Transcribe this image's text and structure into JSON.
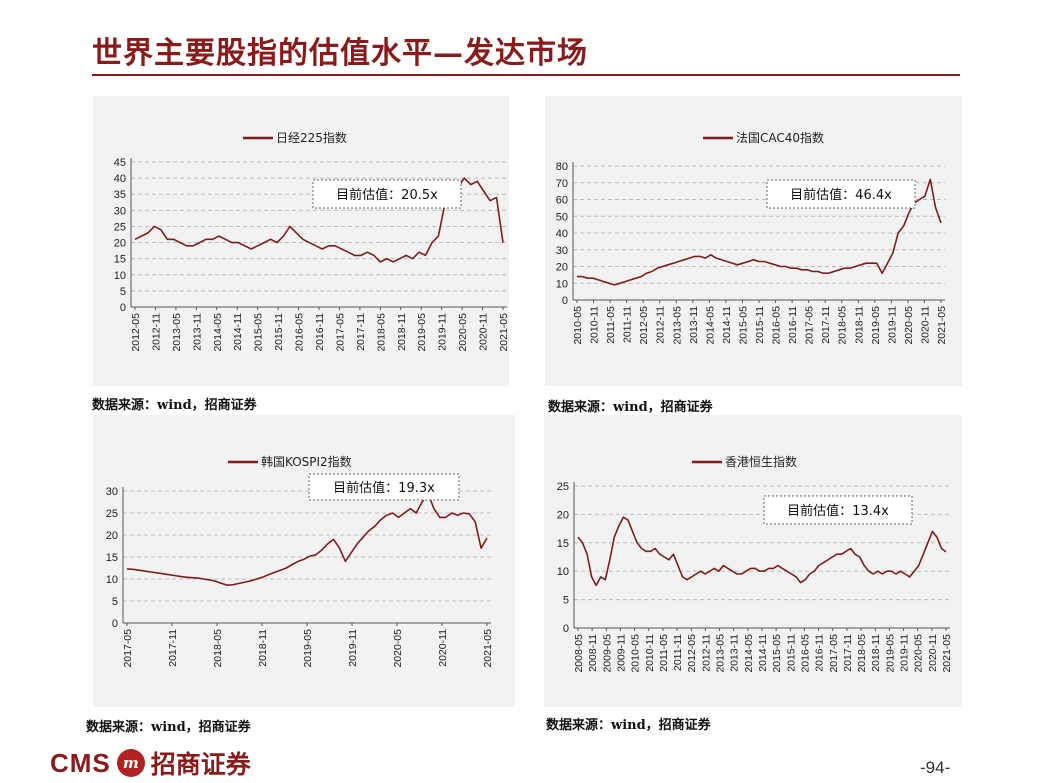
{
  "page": {
    "title": "世界主要股指的估值水平—发达市场",
    "logo_cms": "CMS",
    "logo_mark": "m",
    "logo_cn": "招商证券",
    "page_number": "-94-"
  },
  "colors": {
    "accent": "#8b1a1a",
    "line": "#7f1d1d",
    "panel": "#f2f2f2"
  },
  "chart_data": [
    {
      "type": "line",
      "legend": "日经225指数",
      "annotation": "目前估值：20.5x",
      "source": "数据来源：wind，招商证券",
      "ylim": [
        0,
        45
      ],
      "yticks": [
        0,
        5,
        10,
        15,
        20,
        25,
        30,
        35,
        40,
        45
      ],
      "x_labels": [
        "2012-05",
        "2012-11",
        "2013-05",
        "2013-11",
        "2014-05",
        "2014-11",
        "2015-05",
        "2015-11",
        "2016-05",
        "2016-11",
        "2017-05",
        "2017-11",
        "2018-05",
        "2018-11",
        "2019-05",
        "2019-11",
        "2020-05",
        "2020-11",
        "2021-05"
      ],
      "series": [
        {
          "values": [
            21,
            22,
            23,
            25,
            24,
            21,
            21,
            20,
            19,
            19,
            20,
            21,
            21,
            22,
            21,
            20,
            20,
            19,
            18,
            19,
            20,
            21,
            20,
            22,
            25,
            23,
            21,
            20,
            19,
            18,
            19,
            19,
            18,
            17,
            16,
            16,
            17,
            16,
            14,
            15,
            14,
            15,
            16,
            15,
            17,
            16,
            20,
            22,
            32,
            34,
            37,
            40,
            38,
            39,
            36,
            33,
            34,
            20
          ]
        }
      ]
    },
    {
      "type": "line",
      "legend": "法国CAC40指数",
      "annotation": "目前估值：46.4x",
      "source": "数据来源：wind，招商证券",
      "ylim": [
        0,
        80
      ],
      "yticks": [
        0,
        10,
        20,
        30,
        40,
        50,
        60,
        70,
        80
      ],
      "x_labels": [
        "2010-05",
        "2010-11",
        "2011-05",
        "2011-11",
        "2012-05",
        "2012-11",
        "2013-05",
        "2013-11",
        "2014-05",
        "2014-11",
        "2015-05",
        "2015-11",
        "2016-05",
        "2016-11",
        "2017-05",
        "2017-11",
        "2018-05",
        "2018-11",
        "2019-05",
        "2019-11",
        "2020-05",
        "2020-11",
        "2021-05"
      ],
      "series": [
        {
          "values": [
            14,
            14,
            13,
            13,
            12,
            11,
            10,
            9,
            10,
            11,
            12,
            13,
            14,
            16,
            17,
            19,
            20,
            21,
            22,
            23,
            24,
            25,
            26,
            26,
            25,
            27,
            25,
            24,
            23,
            22,
            21,
            22,
            23,
            24,
            23,
            23,
            22,
            21,
            20,
            20,
            19,
            19,
            18,
            18,
            17,
            17,
            16,
            16,
            17,
            18,
            19,
            19,
            20,
            21,
            22,
            22,
            22,
            16,
            22,
            28,
            40,
            44,
            52,
            58,
            60,
            62,
            72,
            55,
            46
          ]
        }
      ]
    },
    {
      "type": "line",
      "legend": "韩国KOSPI2指数",
      "annotation": "目前估值：19.3x",
      "source": "数据来源：wind，招商证券",
      "ylim": [
        0,
        30
      ],
      "yticks": [
        0,
        5,
        10,
        15,
        20,
        25,
        30
      ],
      "x_labels": [
        "2017-05",
        "2017-11",
        "2018-05",
        "2018-11",
        "2019-05",
        "2019-11",
        "2020-05",
        "2020-11",
        "2021-05"
      ],
      "series": [
        {
          "values": [
            12.3,
            12.2,
            12,
            11.8,
            11.6,
            11.4,
            11.2,
            11,
            10.8,
            10.6,
            10.4,
            10.3,
            10.2,
            10,
            9.8,
            9.5,
            9,
            8.6,
            8.7,
            9,
            9.3,
            9.6,
            10,
            10.4,
            11,
            11.5,
            12,
            12.5,
            13.3,
            14,
            14.5,
            15.2,
            15.5,
            16.6,
            18,
            19,
            17,
            14,
            16,
            18,
            19.5,
            21,
            22,
            23.5,
            24.5,
            25,
            24,
            25,
            26,
            25,
            27.5,
            29.5,
            26,
            24,
            24,
            25,
            24.5,
            25,
            24.8,
            23,
            17,
            19.3
          ]
        }
      ]
    },
    {
      "type": "line",
      "legend": "香港恒生指数",
      "annotation": "目前估值：13.4x",
      "source": "数据来源：wind，招商证券",
      "ylim": [
        0,
        25
      ],
      "yticks": [
        0,
        5,
        10,
        15,
        20,
        25
      ],
      "x_labels": [
        "2008-05",
        "2008-11",
        "2009-05",
        "2009-11",
        "2010-05",
        "2010-11",
        "2011-05",
        "2011-11",
        "2012-05",
        "2012-11",
        "2013-05",
        "2013-11",
        "2014-05",
        "2014-11",
        "2015-05",
        "2015-11",
        "2016-05",
        "2016-11",
        "2017-05",
        "2017-11",
        "2018-05",
        "2018-11",
        "2019-05",
        "2019-11",
        "2020-05",
        "2020-11",
        "2021-05"
      ],
      "series": [
        {
          "values": [
            16,
            15,
            13,
            9,
            7.5,
            9,
            8.5,
            12,
            16,
            18,
            19.5,
            19,
            17,
            15,
            14,
            13.5,
            13.5,
            14,
            13,
            12.5,
            12,
            13,
            11,
            9,
            8.5,
            9,
            9.5,
            10,
            9.5,
            10,
            10.5,
            10,
            11,
            10.5,
            10,
            9.5,
            9.5,
            10,
            10.5,
            10.5,
            10,
            10,
            10.5,
            10.5,
            11,
            10.5,
            10,
            9.5,
            9,
            8,
            8.5,
            9.5,
            10,
            11,
            11.5,
            12,
            12.5,
            13,
            13,
            13.5,
            14,
            13,
            12.5,
            11,
            10,
            9.5,
            10,
            9.5,
            10,
            10,
            9.5,
            10,
            9.5,
            9,
            10,
            11,
            13,
            15,
            17,
            16,
            14,
            13.4
          ]
        }
      ]
    }
  ]
}
